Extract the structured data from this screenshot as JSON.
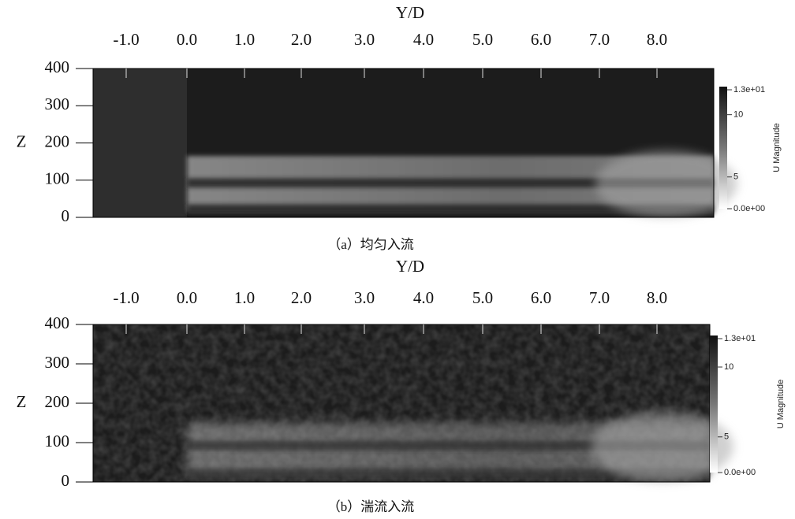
{
  "panels": [
    {
      "x_axis_label": "Y/D",
      "x_ticks": [
        "-1.0",
        "0.0",
        "1.0",
        "2.0",
        "3.0",
        "4.0",
        "5.0",
        "6.0",
        "7.0",
        "8.0"
      ],
      "y_axis_label": "Z",
      "y_ticks": [
        "400",
        "300",
        "200",
        "100",
        "0"
      ],
      "colorbar": {
        "ticks": [
          "1.3e+01",
          "10",
          "5",
          "0.0e+00"
        ],
        "label": "U Magnitude"
      },
      "caption": "（a）均匀入流"
    },
    {
      "x_axis_label": "Y/D",
      "x_ticks": [
        "-1.0",
        "0.0",
        "1.0",
        "2.0",
        "3.0",
        "4.0",
        "5.0",
        "6.0",
        "7.0",
        "8.0"
      ],
      "y_axis_label": "Z",
      "y_ticks": [
        "400",
        "300",
        "200",
        "100",
        "0"
      ],
      "colorbar": {
        "ticks": [
          "1.3e+01",
          "10",
          "5",
          "0.0e+00"
        ],
        "label": "U Magnitude"
      },
      "caption": "（b）湍流入流"
    }
  ]
}
